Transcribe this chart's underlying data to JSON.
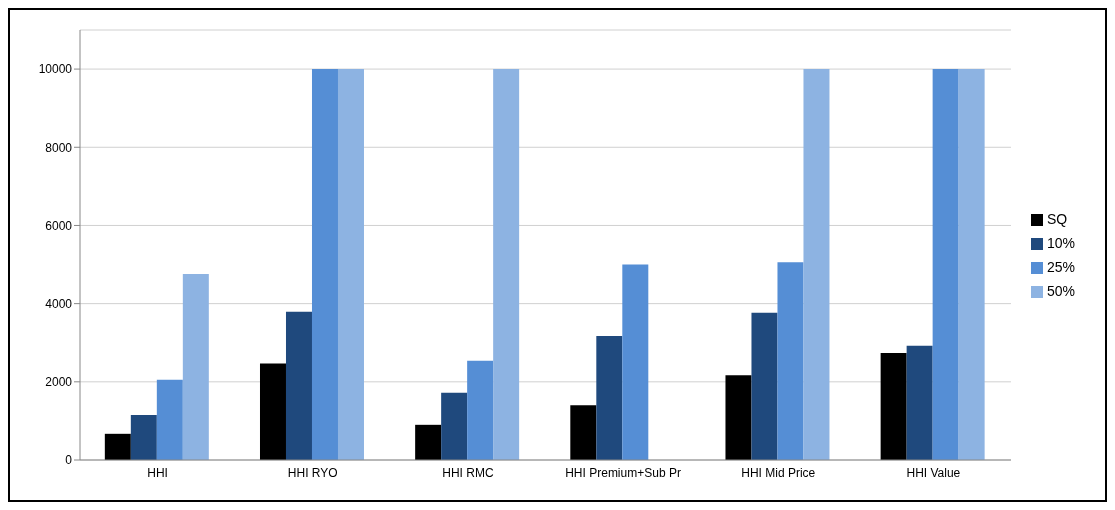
{
  "chart_data": {
    "type": "bar",
    "categories": [
      "HHI",
      "HHI RYO",
      "HHI RMC",
      "HHI Premium+Sub Pr",
      "HHI Mid Price",
      "HHI Value"
    ],
    "series": [
      {
        "name": "SQ",
        "color": "#000000",
        "values": [
          670,
          2470,
          900,
          1400,
          2170,
          2740
        ]
      },
      {
        "name": "10%",
        "color": "#1f497d",
        "values": [
          1150,
          3790,
          1720,
          3170,
          3770,
          2920
        ]
      },
      {
        "name": "25%",
        "color": "#558ed5",
        "values": [
          2050,
          10000,
          2540,
          5000,
          5060,
          10000
        ]
      },
      {
        "name": "50%",
        "color": "#8db3e2",
        "values": [
          4760,
          10000,
          10000,
          null,
          10000,
          10000
        ]
      }
    ],
    "ylim": [
      0,
      11000
    ],
    "yticks": [
      0,
      2000,
      4000,
      6000,
      8000,
      10000
    ],
    "grid": "y",
    "legend": "right"
  }
}
